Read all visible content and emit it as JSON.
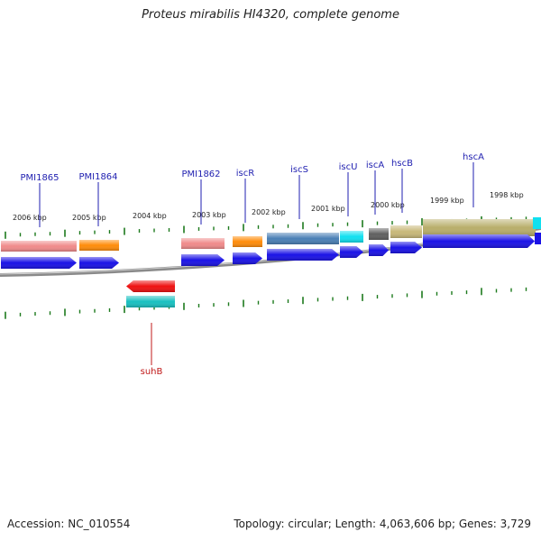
{
  "title": "Proteus mirabilis HI4320, complete genome",
  "footer": {
    "accession": "Accession: NC_010554",
    "summary": "Topology: circular; Length: 4,063,606 bp; Genes: 3,729"
  },
  "colors": {
    "cds": "#1a12e6",
    "gene_label_forward": "#1f1fb0",
    "gene_label_reverse": "#c01818",
    "tick": "#1d7a1d",
    "backbone": "#8a8a8a"
  },
  "ruler_labels": [
    "2006 kbp",
    "2005 kbp",
    "2004 kbp",
    "2003 kbp",
    "2002 kbp",
    "2001 kbp",
    "2000 kbp",
    "1999 kbp",
    "1998 kbp"
  ],
  "features": {
    "forward": [
      {
        "name": "PMI1865",
        "feature_color": "#f08a8a"
      },
      {
        "name": "PMI1864",
        "feature_color": "#ff8c0a"
      },
      {
        "name": "PMI1862",
        "feature_color": "#f08a8a"
      },
      {
        "name": "iscR",
        "feature_color": "#ff8c0a"
      },
      {
        "name": "iscS",
        "feature_color": "#4a7fb5"
      },
      {
        "name": "iscU",
        "feature_color": "#10e0f0"
      },
      {
        "name": "iscA",
        "feature_color": "#606060"
      },
      {
        "name": "hscB",
        "feature_color": "#c8b878"
      },
      {
        "name": "hscA",
        "feature_color": "#b8ae6a"
      }
    ],
    "reverse": [
      {
        "name": "suhB",
        "feature_color": "#ee1010",
        "second_color": "#18c0c0"
      }
    ]
  }
}
